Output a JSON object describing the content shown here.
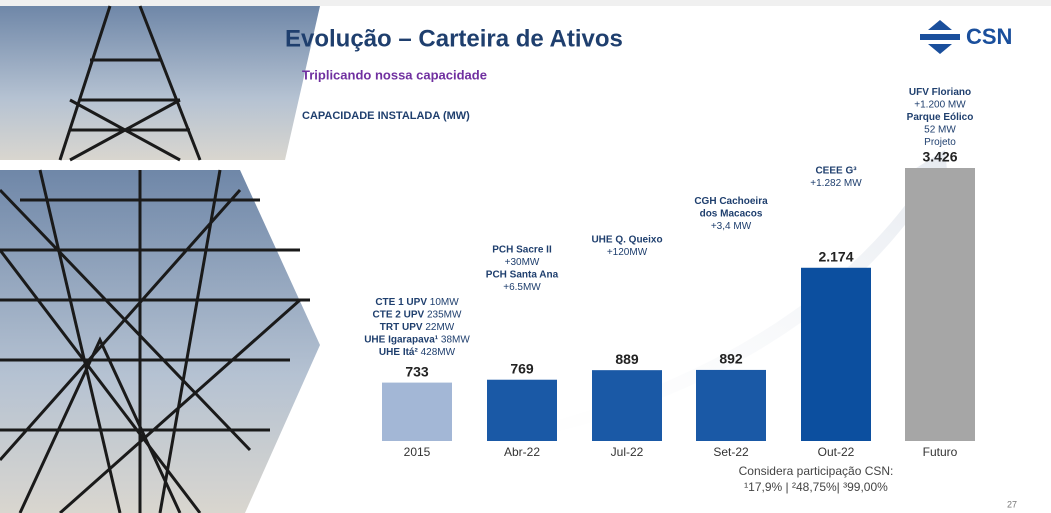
{
  "title": "Evolução – Carteira de Ativos",
  "subtitle": "Triplicando nossa capacidade",
  "logo": "CSN",
  "page_number": "27",
  "footnote": [
    "Considera participação CSN:",
    "¹17,9% | ²48,75%| ³99,00%"
  ],
  "chart_data": {
    "type": "bar",
    "title": "CAPACIDADE INSTALADA (MW)",
    "categories": [
      "2015",
      "Abr-22",
      "Jul-22",
      "Set-22",
      "Out-22",
      "Futuro"
    ],
    "values": [
      733,
      769,
      889,
      892,
      2174,
      3426
    ],
    "value_labels": [
      "733",
      "769",
      "889",
      "892",
      "2.174",
      "3.426"
    ],
    "colors": [
      "#a3b7d6",
      "#1a59a6",
      "#1a59a6",
      "#1a59a6",
      "#0c4f9f",
      "#a6a6a6"
    ],
    "annotations": [
      [
        {
          "b": "CTE 1  UPV",
          "t": "10MW"
        },
        {
          "b": "CTE 2  UPV",
          "t": "235MW"
        },
        {
          "b": "TRT UPV",
          "t": "22MW"
        },
        {
          "b": "UHE Igarapava¹",
          "t": "38MW"
        },
        {
          "b": "UHE Itá²",
          "t": "428MW"
        }
      ],
      [
        {
          "b": "PCH Sacre II"
        },
        {
          "t": "+30MW"
        },
        {
          "b": "PCH Santa Ana"
        },
        {
          "t": "+6.5MW"
        }
      ],
      [
        {
          "b": "UHE Q. Queixo"
        },
        {
          "t": "+120MW"
        }
      ],
      [
        {
          "b": "CGH Cachoeira"
        },
        {
          "b": "dos Macacos"
        },
        {
          "t": "+3,4 MW"
        }
      ],
      [
        {
          "b": "CEEE G³"
        },
        {
          "t": "+1.282 MW"
        }
      ],
      [
        {
          "b": "UFV Floriano"
        },
        {
          "t": "+1.200 MW"
        },
        {
          "b": "Parque Eólico"
        },
        {
          "t": "52 MW"
        },
        {
          "t": "Projeto"
        }
      ]
    ]
  }
}
